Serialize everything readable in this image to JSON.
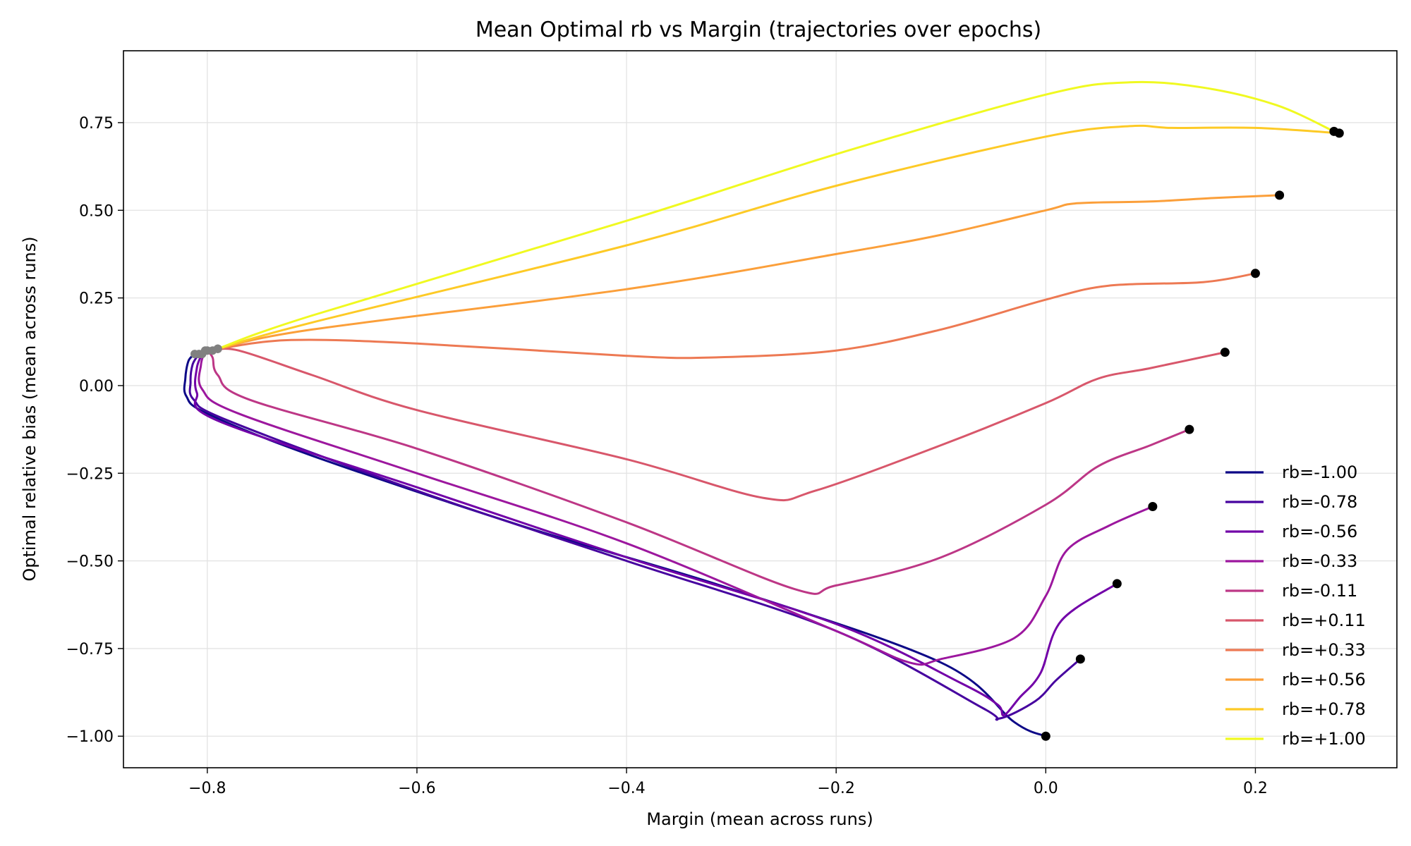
{
  "chart_data": {
    "type": "line",
    "title": "Mean Optimal rb vs Margin (trajectories over epochs)",
    "xlabel": "Margin (mean across runs)",
    "ylabel": "Optimal relative bias (mean across runs)",
    "xlim": [
      -0.88,
      0.335
    ],
    "ylim": [
      -1.09,
      0.955
    ],
    "xticks": [
      -0.8,
      -0.6,
      -0.4,
      -0.2,
      0.0,
      0.2
    ],
    "xtick_labels": [
      "−0.8",
      "−0.6",
      "−0.4",
      "−0.2",
      "0.0",
      "0.2"
    ],
    "yticks": [
      0.75,
      0.5,
      0.25,
      0.0,
      -0.25,
      -0.5,
      -0.75,
      -1.0
    ],
    "ytick_labels": [
      "0.75",
      "0.50",
      "0.25",
      "0.00",
      "−0.25",
      "−0.50",
      "−0.75",
      "−1.00"
    ],
    "grid": true,
    "legend_position": "lower-right",
    "series": [
      {
        "name": "rb=-1.00",
        "color": "#0d0887",
        "points": [
          [
            -0.812,
            0.09
          ],
          [
            -0.818,
            0.07
          ],
          [
            -0.821,
            0.02
          ],
          [
            -0.82,
            -0.03
          ],
          [
            -0.8,
            -0.08
          ],
          [
            -0.7,
            -0.2
          ],
          [
            -0.5,
            -0.4
          ],
          [
            -0.3,
            -0.58
          ],
          [
            -0.1,
            -0.79
          ],
          [
            -0.03,
            -0.96
          ],
          [
            0.0,
            -1.0
          ]
        ]
      },
      {
        "name": "rb=-0.78",
        "color": "#46039f",
        "points": [
          [
            -0.808,
            0.09
          ],
          [
            -0.814,
            0.06
          ],
          [
            -0.816,
            0.01
          ],
          [
            -0.813,
            -0.04
          ],
          [
            -0.78,
            -0.1
          ],
          [
            -0.6,
            -0.3
          ],
          [
            -0.4,
            -0.5
          ],
          [
            -0.2,
            -0.7
          ],
          [
            -0.06,
            -0.92
          ],
          [
            -0.045,
            -0.95
          ],
          [
            -0.01,
            -0.9
          ],
          [
            0.01,
            -0.84
          ],
          [
            0.033,
            -0.78
          ]
        ]
      },
      {
        "name": "rb=-0.56",
        "color": "#7201a8",
        "points": [
          [
            -0.805,
            0.09
          ],
          [
            -0.81,
            0.05
          ],
          [
            -0.81,
            -0.02
          ],
          [
            -0.79,
            -0.1
          ],
          [
            -0.6,
            -0.29
          ],
          [
            -0.4,
            -0.49
          ],
          [
            -0.2,
            -0.68
          ],
          [
            -0.08,
            -0.85
          ],
          [
            -0.046,
            -0.91
          ],
          [
            -0.04,
            -0.94
          ],
          [
            -0.025,
            -0.89
          ],
          [
            -0.005,
            -0.82
          ],
          [
            0.015,
            -0.67
          ],
          [
            0.068,
            -0.565
          ]
        ]
      },
      {
        "name": "rb=-0.33",
        "color": "#9c179e",
        "points": [
          [
            -0.802,
            0.1
          ],
          [
            -0.806,
            0.06
          ],
          [
            -0.805,
            -0.01
          ],
          [
            -0.77,
            -0.08
          ],
          [
            -0.6,
            -0.25
          ],
          [
            -0.4,
            -0.45
          ],
          [
            -0.2,
            -0.7
          ],
          [
            -0.13,
            -0.79
          ],
          [
            -0.1,
            -0.78
          ],
          [
            -0.03,
            -0.72
          ],
          [
            0.0,
            -0.6
          ],
          [
            0.02,
            -0.47
          ],
          [
            0.06,
            -0.4
          ],
          [
            0.102,
            -0.345
          ]
        ]
      },
      {
        "name": "rb=-0.11",
        "color": "#bd3786",
        "points": [
          [
            -0.8,
            0.1
          ],
          [
            -0.795,
            0.08
          ],
          [
            -0.79,
            0.03
          ],
          [
            -0.76,
            -0.04
          ],
          [
            -0.6,
            -0.18
          ],
          [
            -0.4,
            -0.39
          ],
          [
            -0.24,
            -0.58
          ],
          [
            -0.2,
            -0.57
          ],
          [
            -0.1,
            -0.49
          ],
          [
            0.0,
            -0.34
          ],
          [
            0.05,
            -0.23
          ],
          [
            0.1,
            -0.17
          ],
          [
            0.137,
            -0.125
          ]
        ]
      },
      {
        "name": "rb=+0.11",
        "color": "#d8576b",
        "points": [
          [
            -0.795,
            0.1
          ],
          [
            -0.77,
            0.1
          ],
          [
            -0.7,
            0.03
          ],
          [
            -0.6,
            -0.07
          ],
          [
            -0.4,
            -0.21
          ],
          [
            -0.27,
            -0.32
          ],
          [
            -0.22,
            -0.3
          ],
          [
            -0.1,
            -0.17
          ],
          [
            0.0,
            -0.05
          ],
          [
            0.05,
            0.02
          ],
          [
            0.1,
            0.05
          ],
          [
            0.171,
            0.095
          ]
        ]
      },
      {
        "name": "rb=+0.33",
        "color": "#ed7953",
        "points": [
          [
            -0.79,
            0.105
          ],
          [
            -0.72,
            0.13
          ],
          [
            -0.6,
            0.12
          ],
          [
            -0.4,
            0.085
          ],
          [
            -0.32,
            0.08
          ],
          [
            -0.2,
            0.1
          ],
          [
            -0.1,
            0.16
          ],
          [
            0.0,
            0.245
          ],
          [
            0.06,
            0.285
          ],
          [
            0.15,
            0.295
          ],
          [
            0.2,
            0.32
          ]
        ]
      },
      {
        "name": "rb=+0.56",
        "color": "#fb9f3a",
        "points": [
          [
            -0.79,
            0.105
          ],
          [
            -0.7,
            0.16
          ],
          [
            -0.4,
            0.275
          ],
          [
            -0.2,
            0.375
          ],
          [
            -0.1,
            0.43
          ],
          [
            0.0,
            0.5
          ],
          [
            0.03,
            0.52
          ],
          [
            0.1,
            0.525
          ],
          [
            0.16,
            0.535
          ],
          [
            0.223,
            0.543
          ]
        ]
      },
      {
        "name": "rb=+0.78",
        "color": "#fdca26",
        "points": [
          [
            -0.79,
            0.105
          ],
          [
            -0.7,
            0.18
          ],
          [
            -0.4,
            0.4
          ],
          [
            -0.2,
            0.57
          ],
          [
            0.0,
            0.71
          ],
          [
            0.08,
            0.74
          ],
          [
            0.12,
            0.735
          ],
          [
            0.2,
            0.735
          ],
          [
            0.28,
            0.72
          ]
        ]
      },
      {
        "name": "rb=+1.00",
        "color": "#f0f921",
        "points": [
          [
            -0.79,
            0.105
          ],
          [
            -0.7,
            0.2
          ],
          [
            -0.4,
            0.47
          ],
          [
            -0.2,
            0.66
          ],
          [
            0.0,
            0.83
          ],
          [
            0.08,
            0.865
          ],
          [
            0.15,
            0.85
          ],
          [
            0.22,
            0.8
          ],
          [
            0.275,
            0.725
          ]
        ]
      }
    ]
  }
}
